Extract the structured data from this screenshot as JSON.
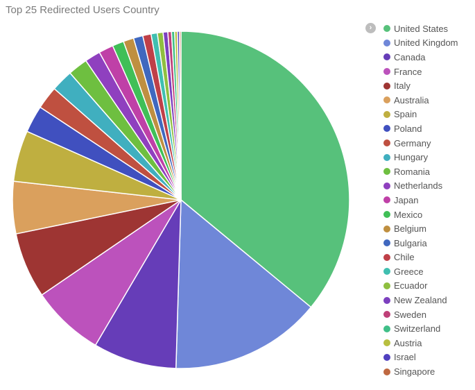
{
  "chart_data": {
    "type": "pie",
    "title": "Top 25 Redirected Users Country",
    "legend_position": "right",
    "slices": [
      {
        "label": "United States",
        "value": 36.0,
        "color": "#57c17b"
      },
      {
        "label": "United Kingdom",
        "value": 14.5,
        "color": "#6f87d8"
      },
      {
        "label": "Canada",
        "value": 8.0,
        "color": "#663db8"
      },
      {
        "label": "France",
        "value": 7.0,
        "color": "#bc52bc"
      },
      {
        "label": "Italy",
        "value": 6.3,
        "color": "#9e3533"
      },
      {
        "label": "Australia",
        "value": 5.0,
        "color": "#daa05d"
      },
      {
        "label": "Spain",
        "value": 4.9,
        "color": "#bfaf40"
      },
      {
        "label": "Poland",
        "value": 2.6,
        "color": "#4050bf"
      },
      {
        "label": "Germany",
        "value": 2.2,
        "color": "#bf5040"
      },
      {
        "label": "Hungary",
        "value": 2.1,
        "color": "#40afbf"
      },
      {
        "label": "Romania",
        "value": 1.9,
        "color": "#6ebf40"
      },
      {
        "label": "Netherlands",
        "value": 1.5,
        "color": "#8f40bf"
      },
      {
        "label": "Japan",
        "value": 1.4,
        "color": "#bf40a7"
      },
      {
        "label": "Mexico",
        "value": 1.1,
        "color": "#40bf57"
      },
      {
        "label": "Belgium",
        "value": 1.0,
        "color": "#bf8f40"
      },
      {
        "label": "Bulgaria",
        "value": 0.9,
        "color": "#4068bf"
      },
      {
        "label": "Chile",
        "value": 0.8,
        "color": "#bf4048"
      },
      {
        "label": "Greece",
        "value": 0.6,
        "color": "#40bfb0"
      },
      {
        "label": "Ecuador",
        "value": 0.55,
        "color": "#8fbf40"
      },
      {
        "label": "New Zealand",
        "value": 0.45,
        "color": "#7c40bf"
      },
      {
        "label": "Sweden",
        "value": 0.35,
        "color": "#bf4078"
      },
      {
        "label": "Switzerland",
        "value": 0.3,
        "color": "#40bf88"
      },
      {
        "label": "Austria",
        "value": 0.25,
        "color": "#b8bf40"
      },
      {
        "label": "Israel",
        "value": 0.2,
        "color": "#5040bf"
      },
      {
        "label": "Singapore",
        "value": 0.15,
        "color": "#bf6840"
      }
    ]
  }
}
